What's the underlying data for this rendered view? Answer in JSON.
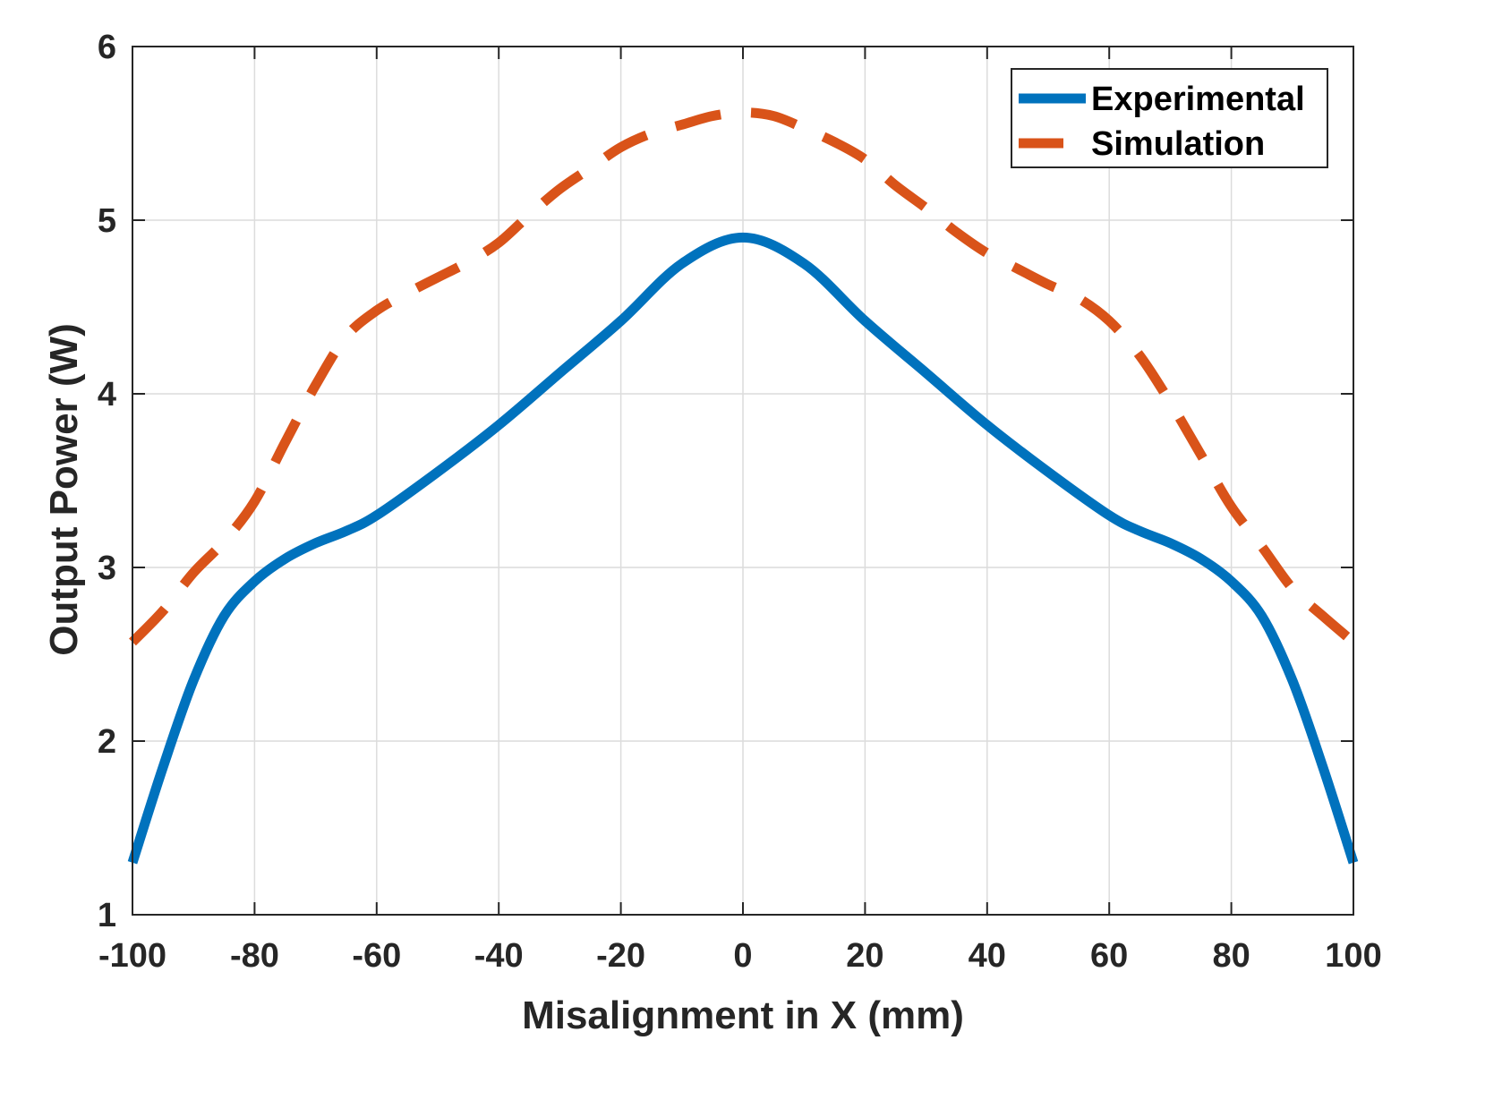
{
  "chart_data": {
    "type": "line",
    "title": "",
    "xlabel": "Misalignment in X (mm)",
    "ylabel": "Output Power (W)",
    "xlim": [
      -100,
      100
    ],
    "ylim": [
      1,
      6
    ],
    "xticks": [
      -100,
      -80,
      -60,
      -40,
      -20,
      0,
      20,
      40,
      60,
      80,
      100
    ],
    "yticks": [
      1,
      2,
      3,
      4,
      5,
      6
    ],
    "xtick_labels": [
      "-100",
      "-80",
      "-60",
      "-40",
      "-20",
      "0",
      "20",
      "40",
      "60",
      "80",
      "100"
    ],
    "ytick_labels": [
      "1",
      "2",
      "3",
      "4",
      "5",
      "6"
    ],
    "grid": true,
    "legend_position": "top-right",
    "series": [
      {
        "name": "Experimental",
        "color": "#0072BD",
        "style": "solid",
        "x": [
          -100,
          -95,
          -90,
          -85,
          -80,
          -75,
          -70,
          -65,
          -60,
          -50,
          -40,
          -30,
          -20,
          -10,
          0,
          10,
          20,
          30,
          40,
          50,
          60,
          65,
          70,
          75,
          80,
          85,
          90,
          95,
          100
        ],
        "y": [
          1.3,
          1.85,
          2.35,
          2.72,
          2.92,
          3.05,
          3.14,
          3.21,
          3.3,
          3.55,
          3.82,
          4.12,
          4.42,
          4.75,
          4.9,
          4.75,
          4.42,
          4.12,
          3.82,
          3.55,
          3.3,
          3.21,
          3.14,
          3.05,
          2.92,
          2.72,
          2.35,
          1.85,
          1.3
        ]
      },
      {
        "name": "Simulation",
        "color": "#D95319",
        "style": "dashed",
        "x": [
          -100,
          -95,
          -90,
          -85,
          -80,
          -75,
          -70,
          -65,
          -60,
          -55,
          -50,
          -45,
          -40,
          -35,
          -30,
          -25,
          -20,
          -15,
          -10,
          -5,
          0,
          5,
          10,
          15,
          20,
          25,
          30,
          35,
          40,
          45,
          50,
          55,
          60,
          65,
          70,
          75,
          80,
          85,
          90,
          95,
          100
        ],
        "y": [
          2.57,
          2.75,
          2.97,
          3.15,
          3.38,
          3.72,
          4.05,
          4.33,
          4.48,
          4.58,
          4.67,
          4.76,
          4.87,
          5.03,
          5.18,
          5.3,
          5.42,
          5.5,
          5.55,
          5.6,
          5.62,
          5.6,
          5.53,
          5.45,
          5.35,
          5.2,
          5.07,
          4.93,
          4.81,
          4.72,
          4.63,
          4.55,
          4.42,
          4.22,
          3.95,
          3.65,
          3.35,
          3.12,
          2.88,
          2.72,
          2.57
        ]
      }
    ]
  }
}
